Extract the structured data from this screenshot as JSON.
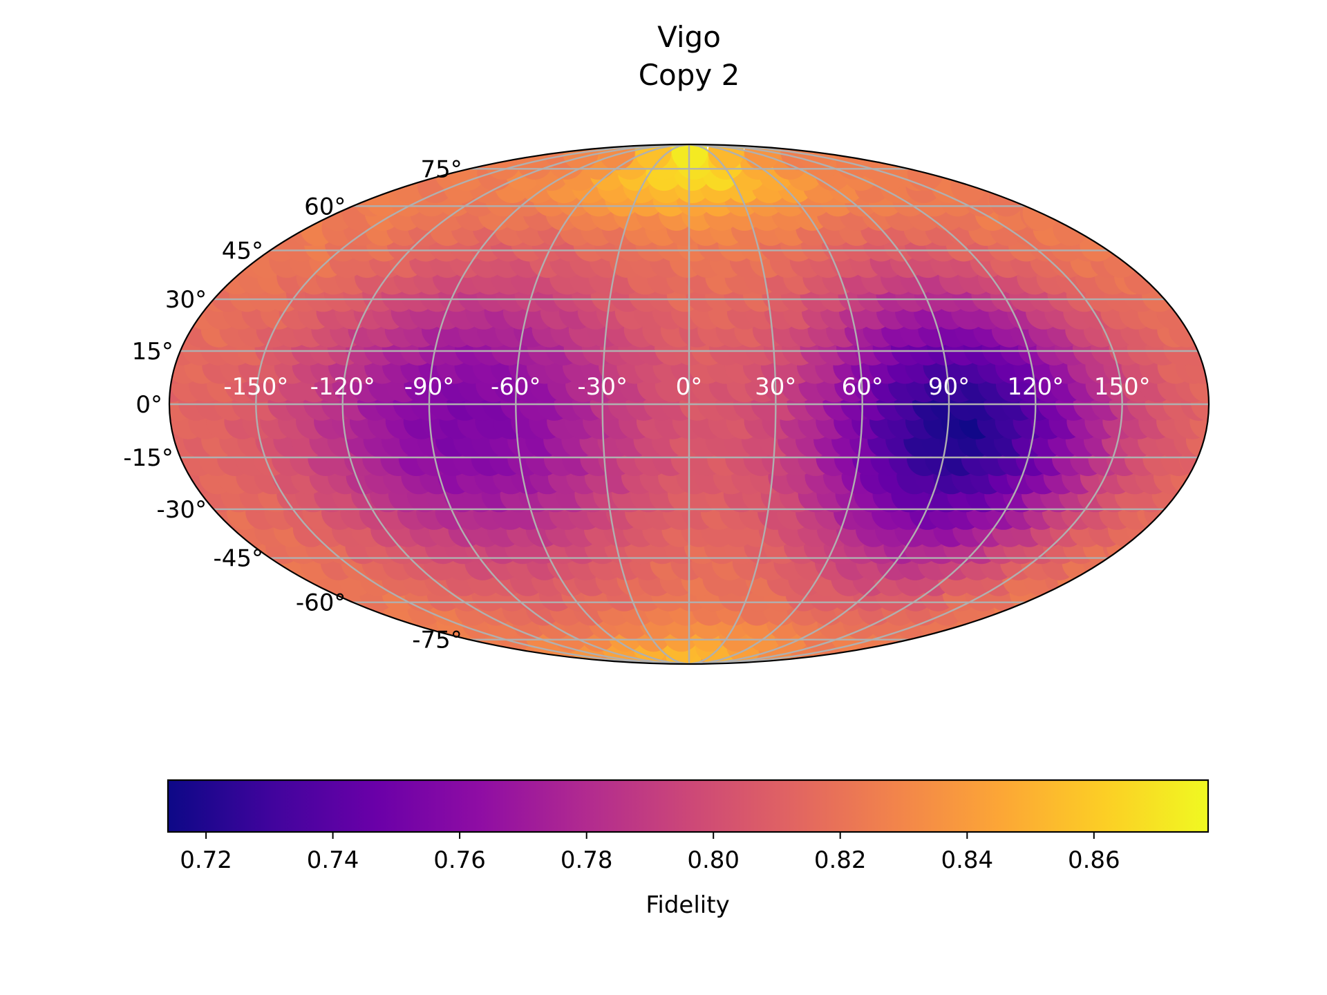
{
  "chart_data": {
    "type": "heatmap",
    "projection": "mollweide",
    "title_lines": [
      "Vigo",
      "Copy 2"
    ],
    "lat_ticks": [
      75,
      60,
      45,
      30,
      15,
      0,
      -15,
      -30,
      -45,
      -60,
      -75
    ],
    "lat_tick_labels": [
      "75°",
      "60°",
      "45°",
      "30°",
      "15°",
      "0°",
      "-15°",
      "-30°",
      "-45°",
      "-60°",
      "-75°"
    ],
    "lon_ticks": [
      -150,
      -120,
      -90,
      -60,
      -30,
      0,
      30,
      60,
      90,
      120,
      150
    ],
    "lon_tick_labels": [
      "-150°",
      "-120°",
      "-90°",
      "-60°",
      "-30°",
      "0°",
      "30°",
      "60°",
      "90°",
      "120°",
      "150°"
    ],
    "grid": true,
    "colormap": "plasma",
    "colorbar": {
      "label": "Fidelity",
      "vmin": 0.714,
      "vmax": 0.878,
      "ticks": [
        0.72,
        0.74,
        0.76,
        0.78,
        0.8,
        0.82,
        0.84,
        0.86
      ],
      "tick_labels": [
        "0.72",
        "0.74",
        "0.76",
        "0.78",
        "0.80",
        "0.82",
        "0.84",
        "0.86"
      ],
      "placement": "bottom"
    },
    "field_features": [
      {
        "lon": 95,
        "lat": -5,
        "value": 0.718,
        "spread_lon": 38,
        "spread_lat": 28
      },
      {
        "lon": -75,
        "lat": -3,
        "value": 0.755,
        "spread_lon": 45,
        "spread_lat": 30
      },
      {
        "lon": 0,
        "lat": 80,
        "value": 0.872,
        "spread_lon": 60,
        "spread_lat": 14
      },
      {
        "lon": 0,
        "lat": -82,
        "value": 0.855,
        "spread_lon": 70,
        "spread_lat": 10
      }
    ],
    "background_value": 0.825
  }
}
